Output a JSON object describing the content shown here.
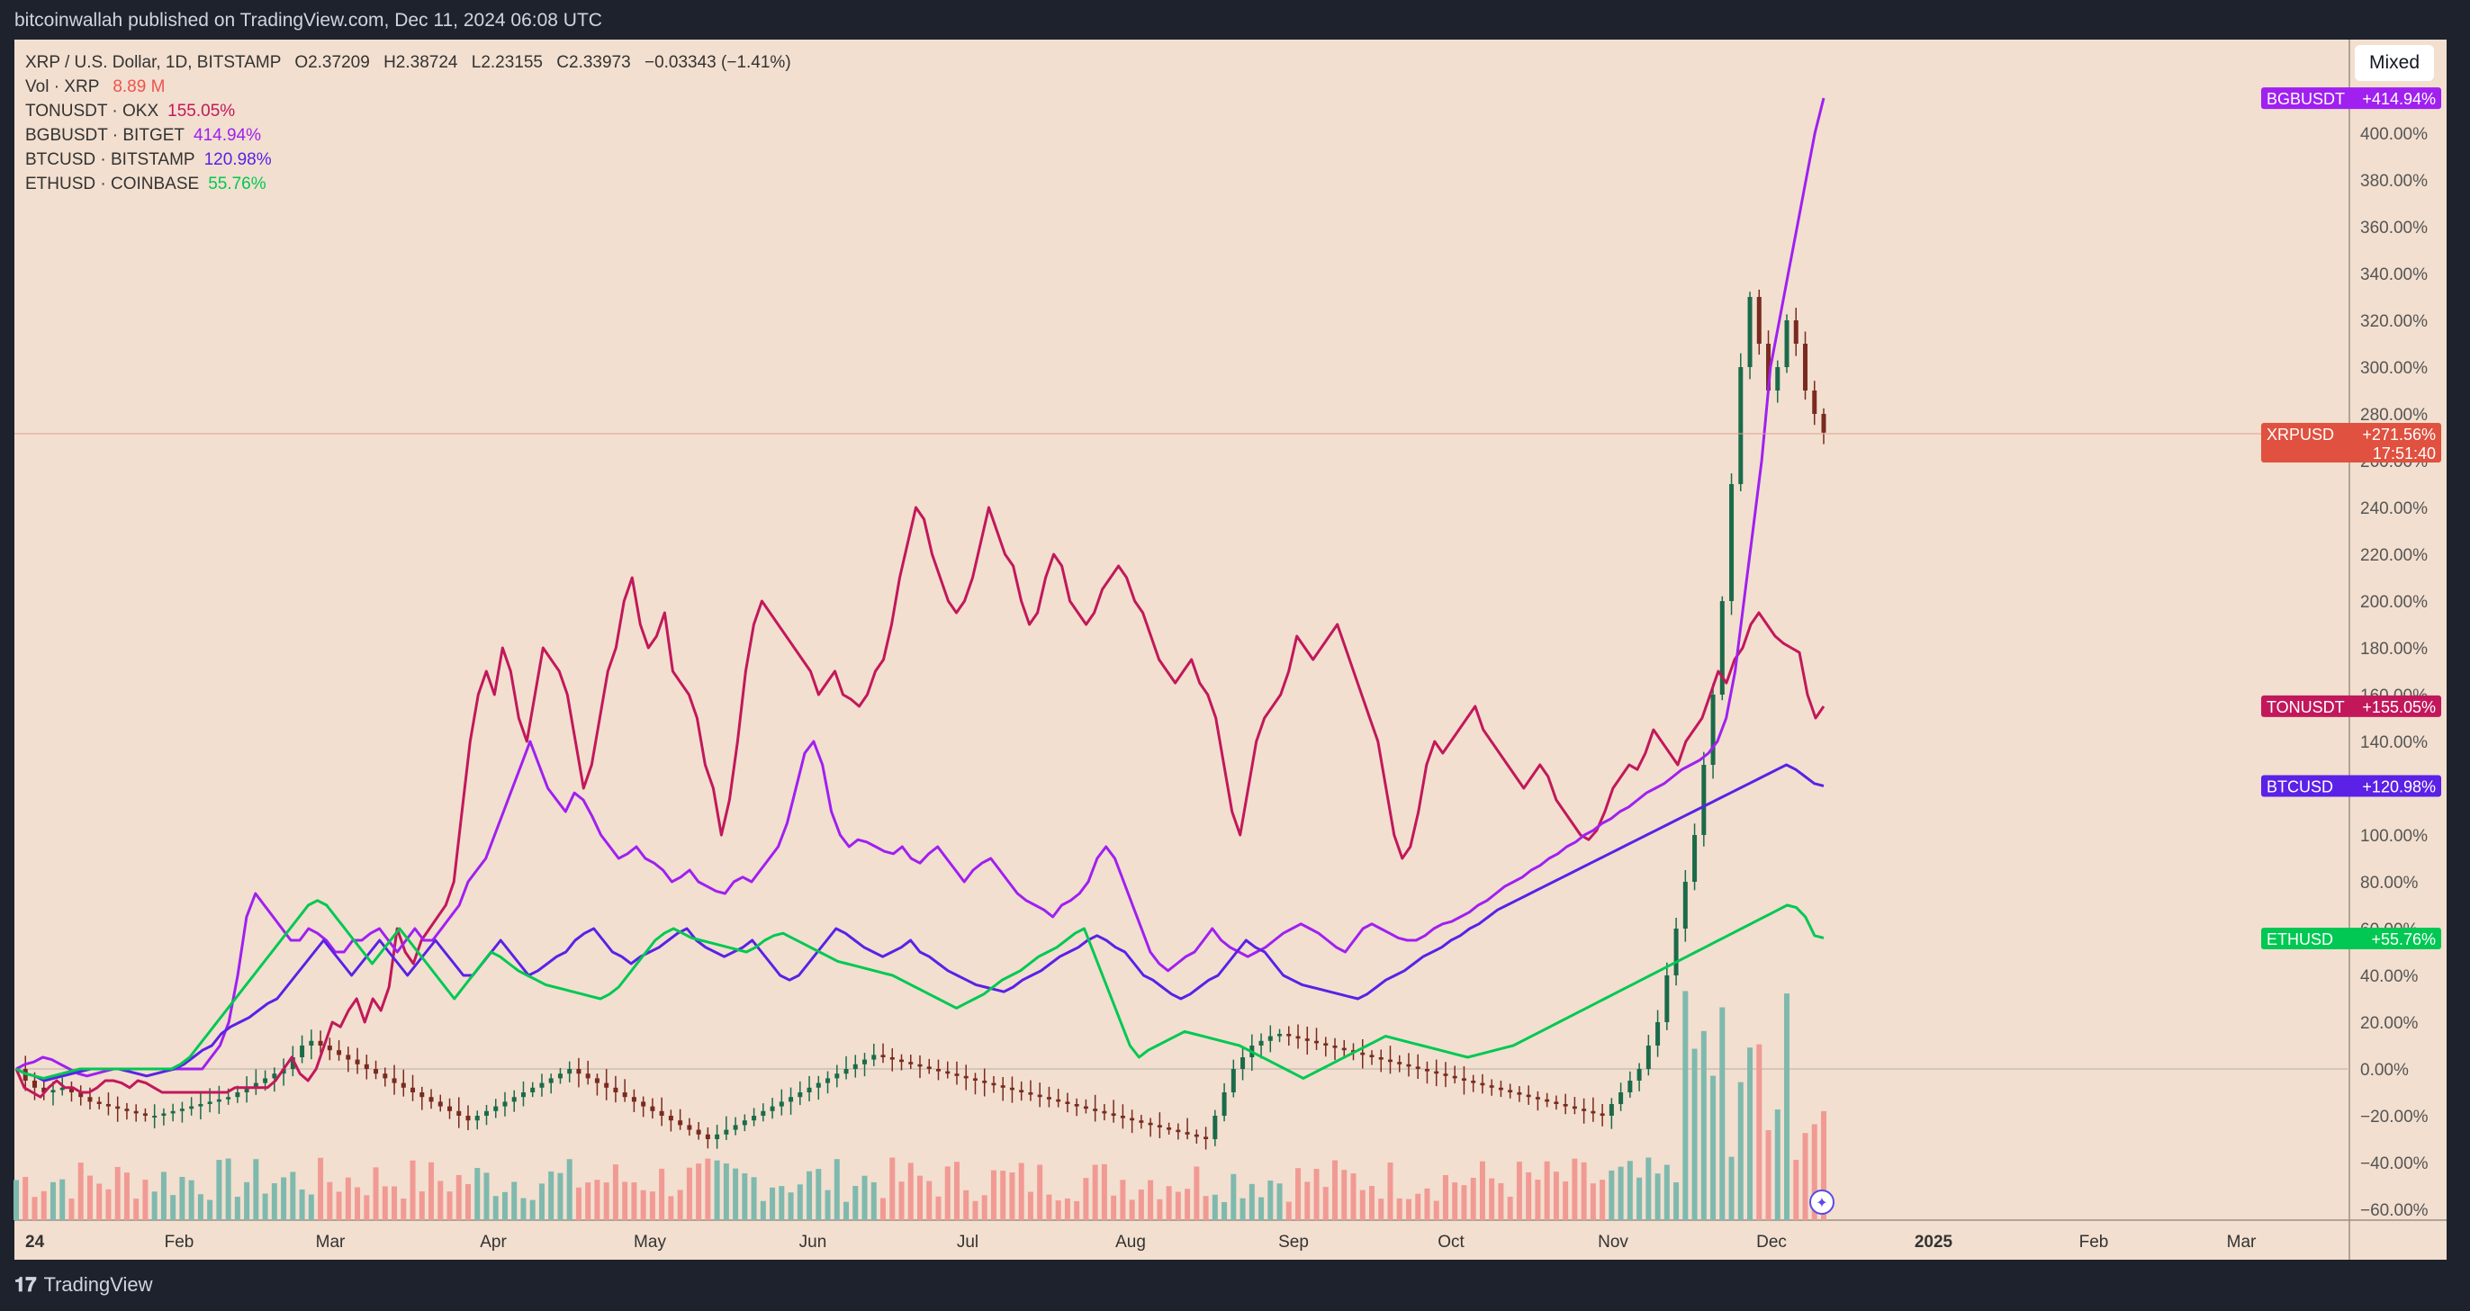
{
  "header": {
    "publisher_line": "bitcoinwallah published on TradingView.com, Dec 11, 2024 06:08 UTC"
  },
  "footer": {
    "brand_logo": "𝟏𝟕",
    "brand_name": "TradingView"
  },
  "scale_button": {
    "label": "Mixed"
  },
  "legend": {
    "main": {
      "symbol": "XRP / U.S. Dollar, 1D, BITSTAMP",
      "o": "O2.37209",
      "h": "H2.38724",
      "l": "L2.23155",
      "c": "C2.33973",
      "chg": "−0.03343 (−1.41%)"
    },
    "vol": {
      "label": "Vol · XRP",
      "value": "8.89 M"
    },
    "rows": [
      {
        "label": "TONUSDT · OKX",
        "value": "155.05%",
        "color": "#c2185b"
      },
      {
        "label": "BGBUSDT · BITGET",
        "value": "414.94%",
        "color": "#a020f0"
      },
      {
        "label": "BTCUSD · BITSTAMP",
        "value": "120.98%",
        "color": "#5b21e6"
      },
      {
        "label": "ETHUSD · COINBASE",
        "value": "55.76%",
        "color": "#00c853"
      }
    ]
  },
  "colors": {
    "up": "#26a69a",
    "down": "#ef5350",
    "vol_up": "#7fb9ae",
    "vol_down": "#f19a94",
    "ton": "#c2185b",
    "bgb": "#a020f0",
    "btc": "#5b21e6",
    "eth": "#00c853",
    "xrp": "#e0513f"
  },
  "chart_data": {
    "type": "line",
    "x_ticks": [
      "24",
      "Feb",
      "Mar",
      "Apr",
      "May",
      "Jun",
      "Jul",
      "Aug",
      "Sep",
      "Oct",
      "Nov",
      "Dec",
      "2025",
      "Feb",
      "Mar"
    ],
    "y_ticks": [
      "400.00%",
      "380.00%",
      "360.00%",
      "340.00%",
      "320.00%",
      "300.00%",
      "280.00%",
      "260.00%",
      "240.00%",
      "220.00%",
      "200.00%",
      "180.00%",
      "160.00%",
      "140.00%",
      "120.00%",
      "100.00%",
      "80.00%",
      "60.00%",
      "40.00%",
      "20.00%",
      "0.00%",
      "−20.00%",
      "−40.00%",
      "−60.00%"
    ],
    "ylim": [
      -60,
      400
    ],
    "price_labels": [
      {
        "name": "BGBUSDT",
        "value": "+414.94%",
        "color": "#a020f0"
      },
      {
        "name": "XRPUSD",
        "value": "+271.56%",
        "extra": "17:51:40",
        "color": "#e0513f"
      },
      {
        "name": "TONUSDT",
        "value": "+155.05%",
        "color": "#c2185b"
      },
      {
        "name": "BTCUSD",
        "value": "+120.98%",
        "color": "#5b21e6"
      },
      {
        "name": "ETHUSD",
        "value": "+55.76%",
        "color": "#00c853"
      }
    ],
    "series": [
      {
        "name": "TONUSDT",
        "values": [
          0,
          -8,
          -10,
          -12,
          -8,
          -5,
          -8,
          -8,
          -10,
          -10,
          -8,
          -5,
          -5,
          -6,
          -8,
          -5,
          -6,
          -8,
          -10,
          -10,
          -10,
          -10,
          -10,
          -10,
          -10,
          -10,
          -10,
          -8,
          -8,
          -8,
          -8,
          -8,
          -5,
          0,
          5,
          -2,
          -5,
          0,
          10,
          20,
          18,
          25,
          30,
          20,
          30,
          25,
          35,
          60,
          50,
          45,
          55,
          60,
          65,
          70,
          80,
          110,
          140,
          160,
          170,
          160,
          180,
          170,
          150,
          140,
          160,
          180,
          175,
          170,
          160,
          140,
          120,
          130,
          150,
          170,
          180,
          200,
          210,
          190,
          180,
          185,
          195,
          170,
          165,
          160,
          150,
          130,
          120,
          100,
          115,
          140,
          170,
          190,
          200,
          195,
          190,
          185,
          180,
          175,
          170,
          160,
          165,
          170,
          160,
          158,
          155,
          160,
          170,
          175,
          190,
          210,
          225,
          240,
          235,
          220,
          210,
          200,
          195,
          200,
          210,
          225,
          240,
          230,
          220,
          215,
          200,
          190,
          195,
          210,
          220,
          215,
          200,
          195,
          190,
          195,
          205,
          210,
          215,
          210,
          200,
          195,
          185,
          175,
          170,
          165,
          170,
          175,
          165,
          160,
          150,
          130,
          110,
          100,
          120,
          140,
          150,
          155,
          160,
          170,
          185,
          180,
          175,
          180,
          185,
          190,
          180,
          170,
          160,
          150,
          140,
          120,
          100,
          90,
          95,
          110,
          130,
          140,
          135,
          140,
          145,
          150,
          155,
          145,
          140,
          135,
          130,
          125,
          120,
          125,
          130,
          125,
          115,
          110,
          105,
          100,
          98,
          102,
          110,
          120,
          125,
          130,
          128,
          135,
          145,
          140,
          135,
          130,
          140,
          145,
          150,
          160,
          170,
          165,
          175,
          180,
          190,
          195,
          190,
          185,
          182,
          180,
          178,
          160,
          150,
          155
        ]
      },
      {
        "name": "BGBUSDT",
        "values": [
          0,
          2,
          3,
          5,
          4,
          2,
          0,
          -2,
          -3,
          -2,
          -1,
          0,
          0,
          0,
          0,
          0,
          0,
          0,
          0,
          0,
          0,
          0,
          5,
          10,
          20,
          40,
          65,
          75,
          70,
          65,
          60,
          55,
          55,
          60,
          58,
          55,
          50,
          50,
          55,
          55,
          58,
          60,
          55,
          50,
          55,
          60,
          55,
          55,
          60,
          65,
          70,
          80,
          85,
          90,
          100,
          110,
          120,
          130,
          140,
          130,
          120,
          115,
          110,
          118,
          115,
          108,
          100,
          95,
          90,
          92,
          95,
          90,
          88,
          85,
          80,
          82,
          85,
          80,
          78,
          76,
          75,
          80,
          82,
          80,
          85,
          90,
          95,
          105,
          120,
          135,
          140,
          130,
          110,
          100,
          95,
          98,
          97,
          95,
          93,
          92,
          95,
          90,
          88,
          92,
          95,
          90,
          85,
          80,
          85,
          88,
          90,
          85,
          80,
          75,
          72,
          70,
          68,
          65,
          70,
          72,
          75,
          80,
          90,
          95,
          90,
          80,
          70,
          60,
          50,
          45,
          42,
          45,
          48,
          50,
          55,
          60,
          55,
          52,
          50,
          48,
          50,
          52,
          55,
          58,
          60,
          62,
          60,
          58,
          55,
          52,
          50,
          55,
          60,
          62,
          60,
          58,
          56,
          55,
          55,
          57,
          60,
          62,
          63,
          65,
          67,
          70,
          72,
          75,
          78,
          80,
          82,
          85,
          87,
          90,
          92,
          95,
          97,
          100,
          102,
          105,
          107,
          110,
          112,
          115,
          118,
          120,
          122,
          125,
          128,
          130,
          132,
          135,
          140,
          150,
          170,
          200,
          230,
          260,
          300,
          320,
          340,
          360,
          380,
          400,
          415
        ]
      },
      {
        "name": "BTCUSD",
        "values": [
          0,
          -2,
          -3,
          -5,
          -4,
          -3,
          -2,
          -1,
          0,
          0,
          0,
          0,
          -1,
          -2,
          -3,
          -2,
          -1,
          0,
          2,
          5,
          8,
          10,
          15,
          18,
          20,
          22,
          25,
          28,
          30,
          35,
          40,
          45,
          50,
          55,
          50,
          45,
          40,
          45,
          50,
          55,
          50,
          45,
          40,
          45,
          50,
          55,
          50,
          45,
          40,
          40,
          45,
          50,
          55,
          50,
          45,
          40,
          42,
          45,
          48,
          50,
          55,
          58,
          60,
          55,
          50,
          48,
          45,
          48,
          50,
          52,
          55,
          58,
          60,
          55,
          52,
          50,
          48,
          50,
          52,
          55,
          50,
          45,
          40,
          38,
          40,
          45,
          50,
          55,
          60,
          58,
          55,
          52,
          50,
          48,
          50,
          52,
          55,
          50,
          48,
          45,
          42,
          40,
          38,
          36,
          35,
          34,
          33,
          35,
          38,
          40,
          42,
          45,
          48,
          50,
          52,
          55,
          57,
          55,
          52,
          50,
          45,
          40,
          38,
          35,
          32,
          30,
          32,
          35,
          38,
          40,
          45,
          50,
          55,
          52,
          50,
          45,
          40,
          38,
          36,
          35,
          34,
          33,
          32,
          31,
          30,
          32,
          35,
          38,
          40,
          42,
          45,
          48,
          50,
          52,
          55,
          57,
          60,
          62,
          65,
          68,
          70,
          72,
          74,
          76,
          78,
          80,
          82,
          84,
          86,
          88,
          90,
          92,
          94,
          96,
          98,
          100,
          102,
          104,
          106,
          108,
          110,
          112,
          114,
          116,
          118,
          120,
          122,
          124,
          126,
          128,
          130,
          128,
          125,
          122,
          121
        ]
      },
      {
        "name": "ETHUSD",
        "values": [
          0,
          -2,
          -3,
          -4,
          -3,
          -2,
          -1,
          0,
          0,
          0,
          0,
          0,
          0,
          0,
          0,
          0,
          0,
          0,
          2,
          5,
          10,
          15,
          20,
          25,
          30,
          35,
          40,
          45,
          50,
          55,
          60,
          65,
          70,
          72,
          70,
          65,
          60,
          55,
          50,
          45,
          50,
          55,
          60,
          55,
          50,
          45,
          40,
          35,
          30,
          35,
          40,
          45,
          50,
          48,
          45,
          42,
          40,
          38,
          36,
          35,
          34,
          33,
          32,
          31,
          30,
          32,
          35,
          40,
          45,
          50,
          55,
          58,
          60,
          58,
          56,
          55,
          54,
          53,
          52,
          51,
          50,
          52,
          55,
          57,
          58,
          56,
          54,
          52,
          50,
          48,
          46,
          45,
          44,
          43,
          42,
          41,
          40,
          38,
          36,
          34,
          32,
          30,
          28,
          26,
          28,
          30,
          32,
          35,
          38,
          40,
          42,
          45,
          48,
          50,
          52,
          55,
          58,
          60,
          50,
          40,
          30,
          20,
          10,
          5,
          8,
          10,
          12,
          14,
          16,
          15,
          14,
          13,
          12,
          11,
          10,
          8,
          6,
          4,
          2,
          0,
          -2,
          -4,
          -2,
          0,
          2,
          4,
          6,
          8,
          10,
          12,
          14,
          13,
          12,
          11,
          10,
          9,
          8,
          7,
          6,
          5,
          6,
          7,
          8,
          9,
          10,
          12,
          14,
          16,
          18,
          20,
          22,
          24,
          26,
          28,
          30,
          32,
          34,
          36,
          38,
          40,
          42,
          44,
          46,
          48,
          50,
          52,
          54,
          56,
          58,
          60,
          62,
          64,
          66,
          68,
          70,
          69,
          65,
          57,
          56
        ]
      },
      {
        "name": "XRPUSD",
        "values": [
          0,
          -5,
          -8,
          -10,
          -9,
          -8,
          -10,
          -12,
          -14,
          -15,
          -16,
          -17,
          -18,
          -19,
          -20,
          -20,
          -19,
          -18,
          -17,
          -16,
          -15,
          -14,
          -13,
          -12,
          -10,
          -8,
          -6,
          -4,
          -2,
          0,
          5,
          10,
          12,
          10,
          8,
          6,
          4,
          2,
          0,
          -2,
          -4,
          -6,
          -8,
          -10,
          -12,
          -14,
          -16,
          -18,
          -20,
          -22,
          -20,
          -18,
          -16,
          -14,
          -12,
          -10,
          -8,
          -6,
          -4,
          -2,
          0,
          -2,
          -4,
          -6,
          -8,
          -10,
          -12,
          -14,
          -16,
          -18,
          -20,
          -22,
          -24,
          -26,
          -28,
          -30,
          -28,
          -26,
          -24,
          -22,
          -20,
          -18,
          -16,
          -14,
          -12,
          -10,
          -8,
          -6,
          -4,
          -2,
          0,
          2,
          4,
          6,
          5,
          4,
          3,
          2,
          1,
          0,
          -1,
          -2,
          -3,
          -4,
          -5,
          -6,
          -7,
          -8,
          -9,
          -10,
          -11,
          -12,
          -13,
          -14,
          -15,
          -16,
          -17,
          -18,
          -19,
          -20,
          -21,
          -22,
          -23,
          -24,
          -25,
          -26,
          -27,
          -28,
          -29,
          -30,
          -20,
          -10,
          0,
          5,
          10,
          12,
          14,
          15,
          14,
          13,
          12,
          11,
          10,
          9,
          8,
          7,
          6,
          5,
          4,
          3,
          2,
          1,
          0,
          -1,
          -2,
          -3,
          -4,
          -5,
          -6,
          -7,
          -8,
          -9,
          -10,
          -11,
          -12,
          -13,
          -14,
          -15,
          -16,
          -17,
          -18,
          -19,
          -20,
          -15,
          -10,
          -5,
          0,
          10,
          20,
          40,
          60,
          80,
          100,
          130,
          160,
          200,
          250,
          300,
          330,
          310,
          290,
          300,
          320,
          310,
          290,
          280,
          272
        ]
      }
    ]
  }
}
